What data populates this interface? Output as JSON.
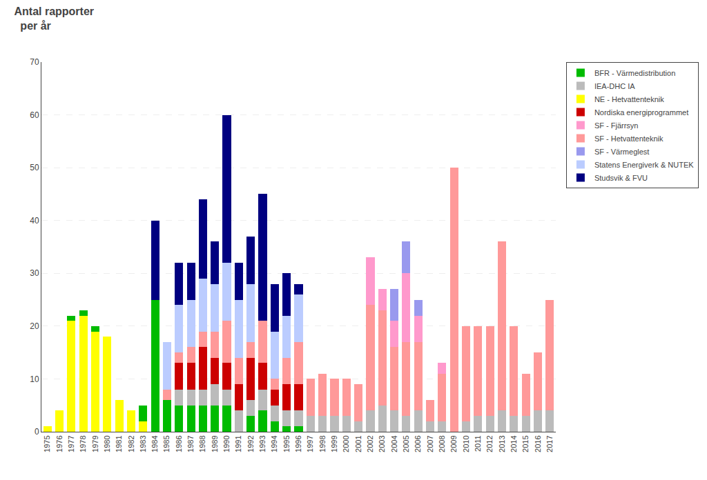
{
  "chart_data": {
    "type": "bar",
    "title": "Antal rapporter",
    "subtitle": "  per år",
    "categories": [
      "1975",
      "1976",
      "1977",
      "1978",
      "1979",
      "1980",
      "1981",
      "1982",
      "1983",
      "1984",
      "1985",
      "1986",
      "1987",
      "1988",
      "1989",
      "1990",
      "1991",
      "1992",
      "1993",
      "1994",
      "1995",
      "1996",
      "1997",
      "1998",
      "1999",
      "2000",
      "2001",
      "2002",
      "2003",
      "2004",
      "2005",
      "2006",
      "2007",
      "2008",
      "2009",
      "2010",
      "2011",
      "2012",
      "2013",
      "2014",
      "2015",
      "2016",
      "2017"
    ],
    "series": [
      {
        "name": "NE - Hetvattenteknik",
        "color": "#FFFF00",
        "values": [
          1,
          4,
          21,
          22,
          19,
          18,
          6,
          4,
          2,
          0,
          0,
          0,
          0,
          0,
          0,
          0,
          0,
          0,
          0,
          0,
          0,
          0,
          0,
          0,
          0,
          0,
          0,
          0,
          0,
          0,
          0,
          0,
          0,
          0,
          0,
          0,
          0,
          0,
          0,
          0,
          0,
          0,
          0
        ]
      },
      {
        "name": "BFR - Värmedistribution",
        "color": "#00BB00",
        "values": [
          0,
          0,
          1,
          1,
          1,
          0,
          0,
          0,
          3,
          25,
          6,
          5,
          5,
          5,
          5,
          5,
          0,
          3,
          4,
          2,
          1,
          1,
          0,
          0,
          0,
          0,
          0,
          0,
          0,
          0,
          0,
          0,
          0,
          0,
          0,
          0,
          0,
          0,
          0,
          0,
          0,
          0,
          0
        ]
      },
      {
        "name": "IEA-DHC IA",
        "color": "#BBBBBB",
        "values": [
          0,
          0,
          0,
          0,
          0,
          0,
          0,
          0,
          0,
          0,
          0,
          3,
          3,
          3,
          4,
          3,
          4,
          3,
          4,
          3,
          3,
          3,
          3,
          3,
          3,
          3,
          2,
          4,
          5,
          4,
          3,
          4,
          2,
          2,
          0,
          2,
          3,
          3,
          4,
          3,
          3,
          4,
          4
        ]
      },
      {
        "name": "Nordiska energiprogrammet",
        "color": "#CC0000",
        "values": [
          0,
          0,
          0,
          0,
          0,
          0,
          0,
          0,
          0,
          0,
          0,
          5,
          5,
          8,
          5,
          5,
          5,
          8,
          5,
          3,
          5,
          5,
          0,
          0,
          0,
          0,
          0,
          0,
          0,
          0,
          0,
          0,
          0,
          0,
          0,
          0,
          0,
          0,
          0,
          0,
          0,
          0,
          0
        ]
      },
      {
        "name": "SF - Hetvattenteknik",
        "color": "#FF9999",
        "values": [
          0,
          0,
          0,
          0,
          0,
          0,
          0,
          0,
          0,
          0,
          2,
          2,
          3,
          3,
          5,
          8,
          5,
          3,
          8,
          2,
          5,
          8,
          7,
          8,
          7,
          7,
          7,
          20,
          18,
          12,
          14,
          13,
          4,
          9,
          50,
          18,
          17,
          17,
          32,
          17,
          8,
          11,
          21
        ]
      },
      {
        "name": "SF - Fjärrsyn",
        "color": "#FF99CC",
        "values": [
          0,
          0,
          0,
          0,
          0,
          0,
          0,
          0,
          0,
          0,
          0,
          0,
          0,
          0,
          0,
          0,
          0,
          0,
          0,
          0,
          0,
          0,
          0,
          0,
          0,
          0,
          0,
          9,
          4,
          5,
          13,
          5,
          0,
          2,
          0,
          0,
          0,
          0,
          0,
          0,
          0,
          0,
          0
        ]
      },
      {
        "name": "SF - Värmeglest",
        "color": "#9999EE",
        "values": [
          0,
          0,
          0,
          0,
          0,
          0,
          0,
          0,
          0,
          0,
          0,
          0,
          0,
          0,
          0,
          0,
          0,
          0,
          0,
          0,
          0,
          0,
          0,
          0,
          0,
          0,
          0,
          0,
          0,
          6,
          6,
          3,
          0,
          0,
          0,
          0,
          0,
          0,
          0,
          0,
          0,
          0,
          0
        ]
      },
      {
        "name": "Statens Energiverk & NUTEK",
        "color": "#BBCCFF",
        "values": [
          0,
          0,
          0,
          0,
          0,
          0,
          0,
          0,
          0,
          0,
          9,
          9,
          9,
          10,
          9,
          11,
          11,
          11,
          0,
          9,
          8,
          9,
          0,
          0,
          0,
          0,
          0,
          0,
          0,
          0,
          0,
          0,
          0,
          0,
          0,
          0,
          0,
          0,
          0,
          0,
          0,
          0,
          0
        ]
      },
      {
        "name": "Studsvik & FVU",
        "color": "#000080",
        "values": [
          0,
          0,
          0,
          0,
          0,
          0,
          0,
          0,
          0,
          15,
          0,
          8,
          7,
          15,
          8,
          28,
          7,
          9,
          24,
          9,
          8,
          2,
          0,
          0,
          0,
          0,
          0,
          0,
          0,
          0,
          0,
          0,
          0,
          0,
          0,
          0,
          0,
          0,
          0,
          0,
          0,
          0,
          0
        ]
      }
    ],
    "stacked": true,
    "ylim": [
      0,
      70
    ],
    "yticks": [
      0,
      10,
      20,
      30,
      40,
      50,
      60,
      70
    ],
    "grid": true,
    "legend": "upper right"
  }
}
